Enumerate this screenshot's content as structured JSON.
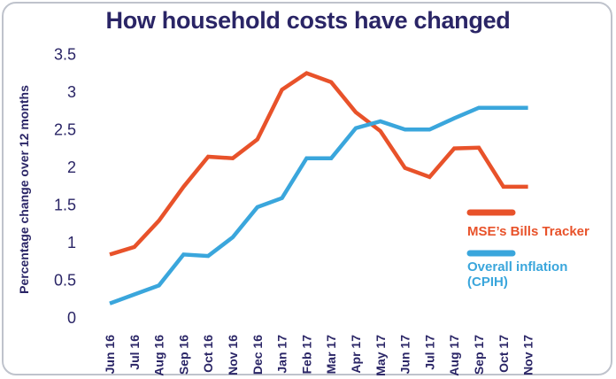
{
  "chart_data": {
    "type": "line",
    "title": "How household costs have changed",
    "ylabel": "Percentage change over 12 months",
    "xlabel": "",
    "ylim": [
      0,
      3.5
    ],
    "yticks": [
      "0",
      "0.5",
      "1",
      "1.5",
      "2",
      "2.5",
      "3",
      "3.5"
    ],
    "grid": false,
    "legend_position": "right",
    "categories": [
      "Jun 16",
      "Jul 16",
      "Aug 16",
      "Sep 16",
      "Oct 16",
      "Nov 16",
      "Dec 16",
      "Jan 17",
      "Feb 17",
      "Mar 17",
      "Apr 17",
      "May 17",
      "Jun 17",
      "Jul 17",
      "Aug 17",
      "Sep 17",
      "Oct 17",
      "Nov 17"
    ],
    "series": [
      {
        "name": "MSE's Bills Tracker",
        "color": "#e8522a",
        "values": [
          0.83,
          0.93,
          1.28,
          1.73,
          2.13,
          2.11,
          2.36,
          3.02,
          3.24,
          3.12,
          2.72,
          2.47,
          1.98,
          1.86,
          2.24,
          2.25,
          1.73,
          1.73
        ]
      },
      {
        "name": "Overall inflation (CPIH)",
        "color": "#3aa6dc",
        "values": [
          0.18,
          0.3,
          0.42,
          0.83,
          0.81,
          1.06,
          1.46,
          1.58,
          2.11,
          2.11,
          2.51,
          2.6,
          2.49,
          2.49,
          2.64,
          2.78,
          2.78,
          2.78
        ]
      }
    ],
    "legend": [
      {
        "label_lines": [
          "MSE’s Bills Tracker"
        ],
        "color": "#e8522a"
      },
      {
        "label_lines": [
          "Overall inflation",
          "(CPIH)"
        ],
        "color": "#3aa6dc"
      }
    ]
  }
}
